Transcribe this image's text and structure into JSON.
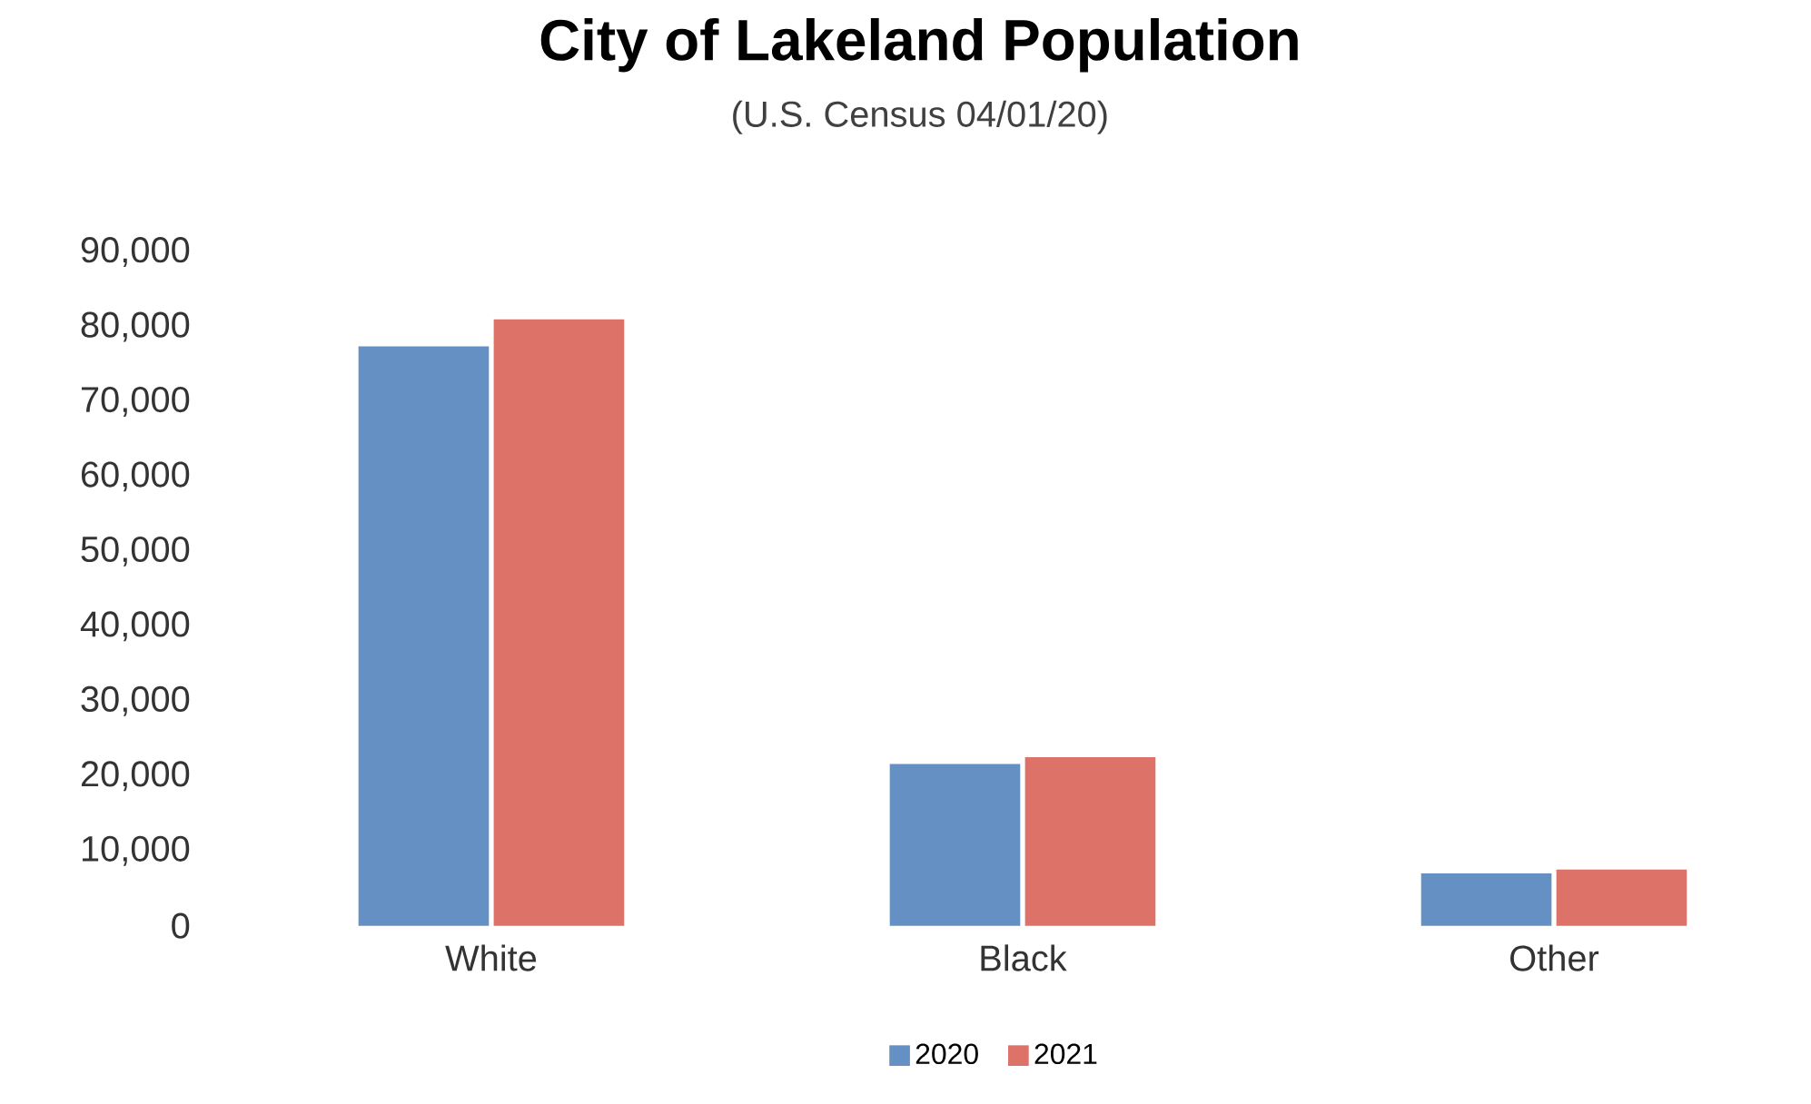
{
  "chart_data": {
    "type": "bar",
    "title": "City  of Lakeland Population",
    "subtitle": "(U.S. Census 04/01/20)",
    "categories": [
      "White",
      "Black",
      "Other"
    ],
    "series": [
      {
        "name": "2020",
        "color": "#6590c4",
        "values": [
          77400,
          21600,
          7000
        ]
      },
      {
        "name": "2021",
        "color": "#dc7268",
        "values": [
          81000,
          22500,
          7500
        ]
      }
    ],
    "ylim": [
      0,
      90000
    ],
    "yticks": [
      {
        "value": 0,
        "label": "0"
      },
      {
        "value": 10000,
        "label": "10,000"
      },
      {
        "value": 20000,
        "label": "20,000"
      },
      {
        "value": 30000,
        "label": "30,000"
      },
      {
        "value": 40000,
        "label": "40,000"
      },
      {
        "value": 50000,
        "label": "50,000"
      },
      {
        "value": 60000,
        "label": "60,000"
      },
      {
        "value": 70000,
        "label": "70,000"
      },
      {
        "value": 80000,
        "label": "80,000"
      },
      {
        "value": 90000,
        "label": "90,000"
      }
    ],
    "legend": "bottom"
  }
}
